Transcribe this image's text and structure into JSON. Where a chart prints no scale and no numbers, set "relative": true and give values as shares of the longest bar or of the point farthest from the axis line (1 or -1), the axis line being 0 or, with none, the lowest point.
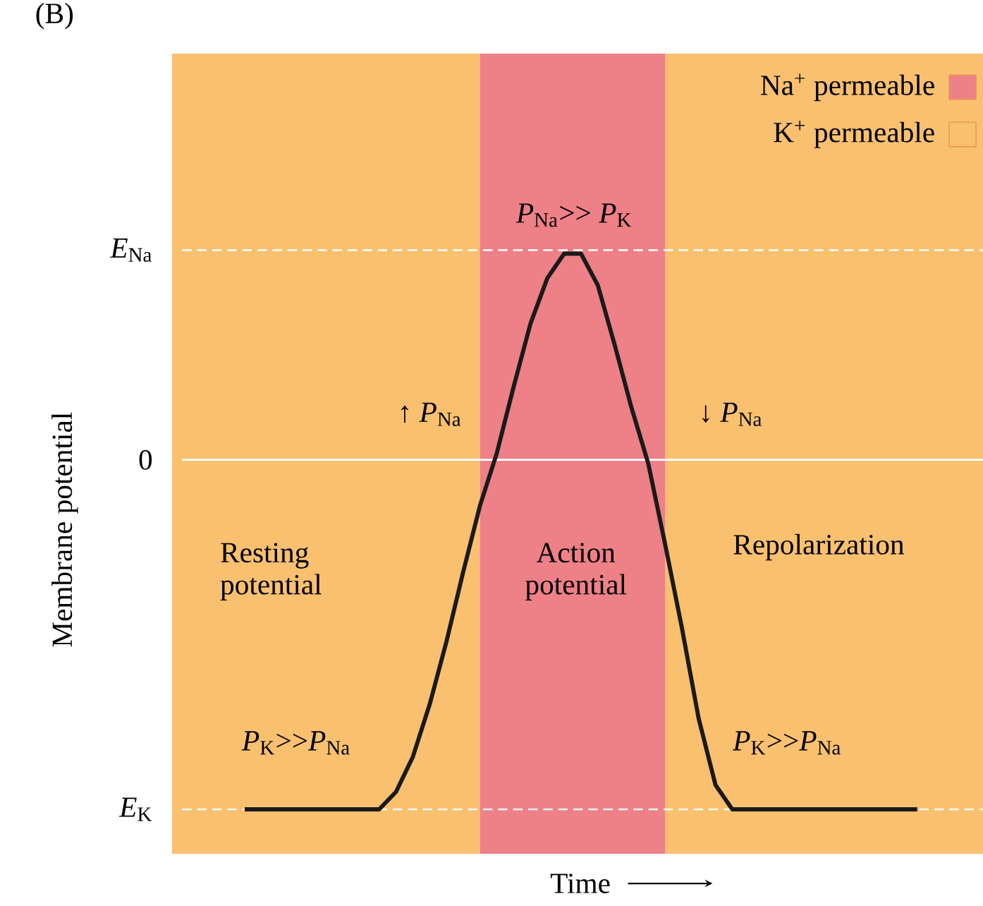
{
  "chart_data": {
    "type": "line",
    "relative": true,
    "categories": [
      null,
      null,
      null,
      null,
      null,
      null,
      null,
      null,
      null,
      null,
      null,
      null,
      null,
      null,
      null,
      null,
      null,
      null,
      null,
      null,
      null,
      null,
      null,
      null,
      null,
      null,
      null,
      null,
      null,
      null,
      null,
      null,
      null,
      null,
      null,
      null,
      null,
      null,
      null,
      null,
      null
    ],
    "series": [
      {
        "color": "#1a1a1a",
        "values": [
          -1,
          -1,
          -1,
          -1,
          -1,
          -1,
          -1,
          -1,
          -1,
          -0.95,
          -0.85,
          -0.7,
          -0.52,
          -0.32,
          -0.13,
          0.02,
          0.21,
          0.39,
          0.52,
          0.59,
          0.59,
          0.5,
          0.33,
          0.15,
          -0.01,
          -0.24,
          -0.48,
          -0.74,
          -0.93,
          -1,
          -1,
          -1,
          -1,
          -1,
          -1,
          -1,
          -1,
          -1,
          -1,
          -1,
          -1
        ]
      }
    ],
    "xlabel": "Time",
    "annotations": [
      "Membrane potential",
      "Na$^{+}$ permeable",
      "K$^{+}$ permeable",
      "(B)",
      "↑ *P*$_{Na}$",
      "↓ *P*$_{Na}$",
      "*P*$_{Na}$>> *P*$_{K}$",
      "Resting potential",
      "Action potential",
      "Repolarization",
      "*P*$_{K}$>>*P*$_{Na}$",
      "*P*$_{K}$>>*P*$_{Na}$"
    ],
    "ref_lines": [
      {
        "axis": "y",
        "value": 0.6,
        "label": "*E*$_{Na}$",
        "color": "#ffffff",
        "line_style": "dashed"
      },
      {
        "axis": "y",
        "value": 0,
        "label": "0",
        "color": "#ffffff",
        "line_style": "solid"
      },
      {
        "axis": "y",
        "value": -1,
        "label": "*E*$_{K}$",
        "color": "#ffffff",
        "line_style": "dashed"
      }
    ],
    "marker": "none",
    "line_style": "solid"
  }
}
